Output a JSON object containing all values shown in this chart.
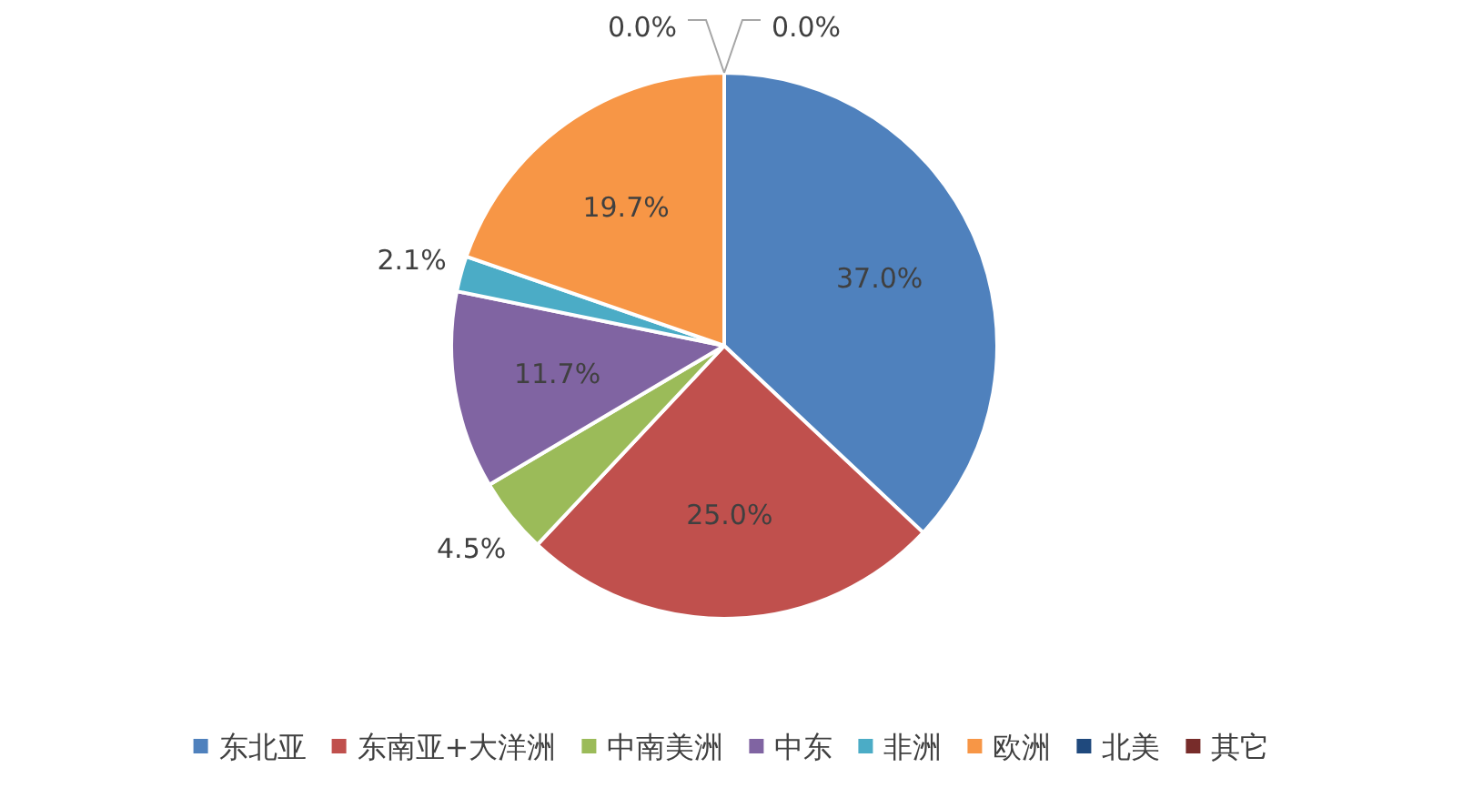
{
  "chart_data": {
    "type": "pie",
    "categories": [
      "东北亚",
      "东南亚+大洋洲",
      "中南美洲",
      "中东",
      "非洲",
      "欧洲",
      "北美",
      "其它"
    ],
    "values": [
      37.0,
      25.0,
      4.5,
      11.7,
      2.1,
      19.7,
      0.0,
      0.0
    ],
    "value_labels": [
      "37.0%",
      "25.0%",
      "4.5%",
      "11.7%",
      "2.1%",
      "19.7%",
      "0.0%",
      "0.0%"
    ],
    "colors": [
      "#4f81bd",
      "#c0504d",
      "#9bbb59",
      "#8064a2",
      "#4bacc6",
      "#f79646",
      "#1f497d",
      "#772c2a"
    ],
    "legend": "bottom"
  }
}
